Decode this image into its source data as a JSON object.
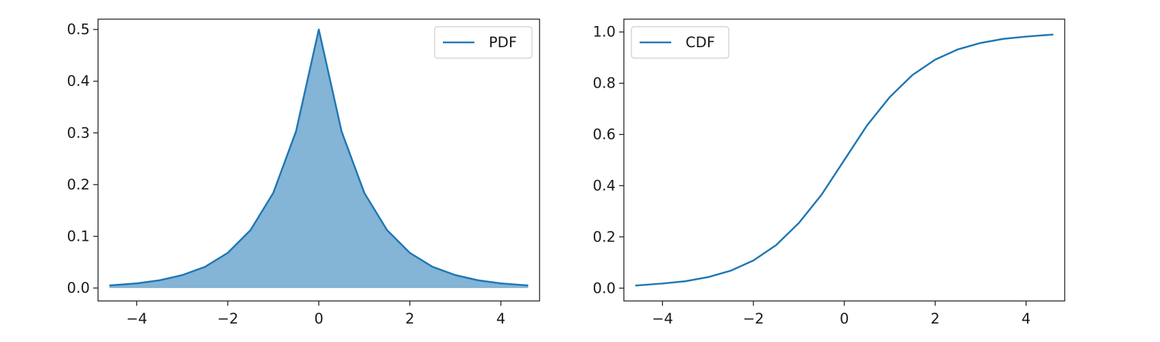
{
  "chart_data": [
    {
      "type": "area",
      "xlim": [
        -4.85,
        4.85
      ],
      "ylim": [
        -0.025,
        0.52
      ],
      "x_ticks": [
        -4,
        -2,
        0,
        2,
        4
      ],
      "x_tick_labels": [
        "−4",
        "−2",
        "0",
        "2",
        "4"
      ],
      "y_ticks": [
        0.0,
        0.1,
        0.2,
        0.3,
        0.4,
        0.5
      ],
      "y_tick_labels": [
        "0.0",
        "0.1",
        "0.2",
        "0.3",
        "0.4",
        "0.5"
      ],
      "legend": {
        "position": "top-right",
        "entries": [
          "PDF"
        ]
      },
      "grid": false,
      "series": [
        {
          "name": "PDF",
          "color": "#1f77b4",
          "fill_color": "#1f77b4",
          "fill_opacity": 0.55,
          "x": [
            -4.6,
            -4.0,
            -3.5,
            -3.0,
            -2.5,
            -2.0,
            -1.5,
            -1.0,
            -0.5,
            0.0,
            0.5,
            1.0,
            1.5,
            2.0,
            2.5,
            3.0,
            3.5,
            4.0,
            4.6
          ],
          "y": [
            0.005,
            0.009,
            0.015,
            0.025,
            0.041,
            0.068,
            0.112,
            0.184,
            0.303,
            0.5,
            0.303,
            0.184,
            0.112,
            0.068,
            0.041,
            0.025,
            0.015,
            0.009,
            0.005
          ]
        }
      ]
    },
    {
      "type": "line",
      "xlim": [
        -4.85,
        4.85
      ],
      "ylim": [
        -0.05,
        1.05
      ],
      "x_ticks": [
        -4,
        -2,
        0,
        2,
        4
      ],
      "x_tick_labels": [
        "−4",
        "−2",
        "0",
        "2",
        "4"
      ],
      "y_ticks": [
        0.0,
        0.2,
        0.4,
        0.6,
        0.8,
        1.0
      ],
      "y_tick_labels": [
        "0.0",
        "0.2",
        "0.4",
        "0.6",
        "0.8",
        "1.0"
      ],
      "legend": {
        "position": "top-left",
        "entries": [
          "CDF"
        ]
      },
      "grid": false,
      "series": [
        {
          "name": "CDF",
          "color": "#1f77b4",
          "x": [
            -4.6,
            -4.0,
            -3.5,
            -3.0,
            -2.5,
            -2.0,
            -1.5,
            -1.0,
            -0.5,
            0.0,
            0.5,
            1.0,
            1.5,
            2.0,
            2.5,
            3.0,
            3.5,
            4.0,
            4.6
          ],
          "y": [
            0.01,
            0.018,
            0.027,
            0.043,
            0.068,
            0.108,
            0.168,
            0.254,
            0.365,
            0.5,
            0.635,
            0.746,
            0.832,
            0.892,
            0.932,
            0.957,
            0.973,
            0.982,
            0.99
          ]
        }
      ]
    }
  ]
}
